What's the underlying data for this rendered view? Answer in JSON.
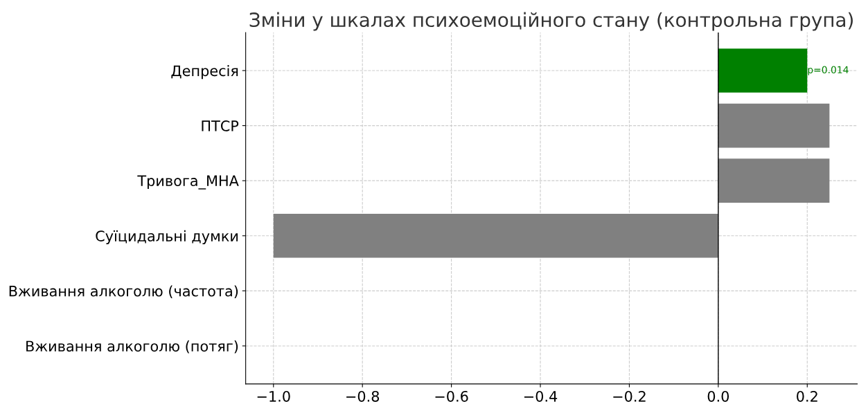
{
  "chart_data": {
    "type": "bar",
    "orientation": "horizontal",
    "title": "Зміни у шкалах психоемоційного стану (контрольна група)",
    "categories": [
      "Депресія",
      "ПТСР",
      "Тривога_МНА",
      "Суїцидальні думки",
      "Вживання алкоголю (частота)",
      "Вживання алкоголю (потяг)"
    ],
    "values": [
      0.2,
      0.25,
      0.25,
      -1.0,
      0,
      0
    ],
    "colors": [
      "#008000",
      "#808080",
      "#808080",
      "#808080",
      "#808080",
      "#808080"
    ],
    "xlim": [
      -1.0625,
      0.3125
    ],
    "xticks": [
      {
        "value": -1.0,
        "label": "−1.0"
      },
      {
        "value": -0.8,
        "label": "−0.8"
      },
      {
        "value": -0.6,
        "label": "−0.6"
      },
      {
        "value": -0.4,
        "label": "−0.4"
      },
      {
        "value": -0.2,
        "label": "−0.2"
      },
      {
        "value": 0.0,
        "label": "0.0"
      },
      {
        "value": 0.2,
        "label": "0.2"
      }
    ],
    "ref_lines": [
      {
        "axis": "x",
        "value": 0,
        "color": "#000000"
      }
    ],
    "annotations": [
      {
        "text": "p=0.014",
        "x": 0.2,
        "y": "Депресія"
      }
    ],
    "grid": true
  }
}
